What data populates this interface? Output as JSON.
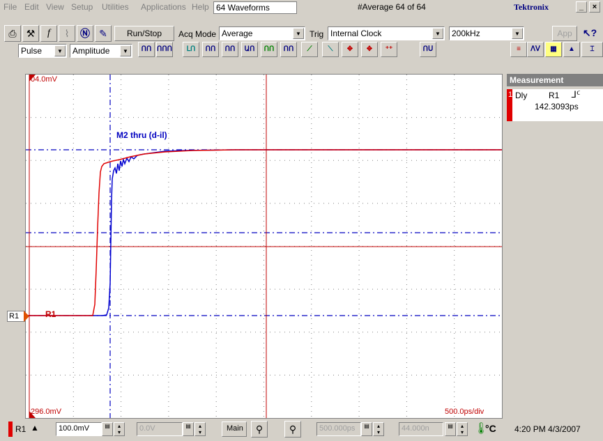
{
  "menu": {
    "items": [
      "File",
      "Edit",
      "View",
      "Setup",
      "Utilities",
      "Applications",
      "Help"
    ],
    "waveforms": "64 Waveforms",
    "average": "#Average  64 of 64",
    "brand": "Tektronix"
  },
  "toolbar": {
    "run_stop": "Run/Stop",
    "acq_mode_label": "Acq Mode",
    "acq_mode_value": "Average",
    "trig_label": "Trig",
    "trig_value": "Internal Clock",
    "rate_value": "200kHz",
    "app_label": "App",
    "measure_category": "Pulse",
    "measure_type": "Amplitude"
  },
  "screen": {
    "top_label": "04.0mV",
    "bottom_label": "296.0mV",
    "time_per_div": "500.0ps/div",
    "waveform_label": "M2 thru (d-il)",
    "ref_marker": "R1",
    "left_marker": "R1"
  },
  "colors": {
    "red_trace": "#e00000",
    "blue_trace": "#0000d0",
    "cursor_blue": "#0000c0",
    "grid": "#808080"
  },
  "measurement": {
    "header": "Measurement",
    "index": "1",
    "name": "Dly",
    "source": "R1",
    "value": "142.3093ps"
  },
  "bottom": {
    "channel": "R1",
    "scale": "100.0mV",
    "offset": "0.0V",
    "timebase_label": "Main",
    "horizontal_pos": "500.000ps",
    "record_pos": "44.000n",
    "temp_unit": "°C",
    "clock": "4:20 PM 4/3/2007"
  }
}
